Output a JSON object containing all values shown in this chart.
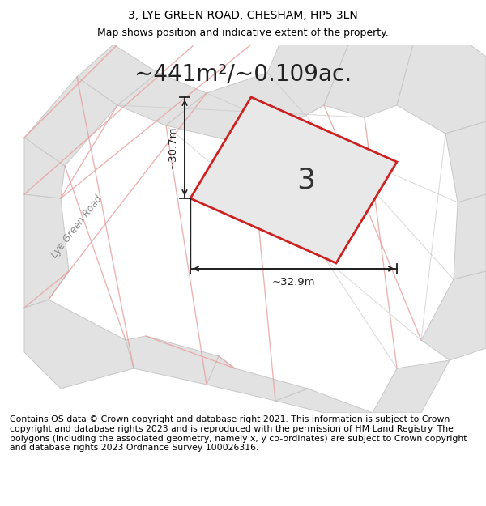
{
  "title": "3, LYE GREEN ROAD, CHESHAM, HP5 3LN",
  "subtitle": "Map shows position and indicative extent of the property.",
  "area_text": "~441m²/~0.109ac.",
  "property_number": "3",
  "dim_horizontal": "~32.9m",
  "dim_vertical": "~30.7m",
  "road_label": "Lye Green Road",
  "footer": "Contains OS data © Crown copyright and database right 2021. This information is subject to Crown copyright and database rights 2023 and is reproduced with the permission of HM Land Registry. The polygons (including the associated geometry, namely x, y co-ordinates) are subject to Crown copyright and database rights 2023 Ordnance Survey 100026316.",
  "title_fontsize": 10,
  "subtitle_fontsize": 9,
  "area_fontsize": 20,
  "footer_fontsize": 7.8,
  "bg_white": "#ffffff",
  "map_bg": "#f5f5f5",
  "parcel_fill": "#e2e2e2",
  "parcel_edge": "#c8c8c8",
  "road_line_color": "#e8a0a0",
  "property_edge": "#cc2222",
  "dim_color": "#222222",
  "label_color": "#444444",
  "road_label_color": "#888888"
}
